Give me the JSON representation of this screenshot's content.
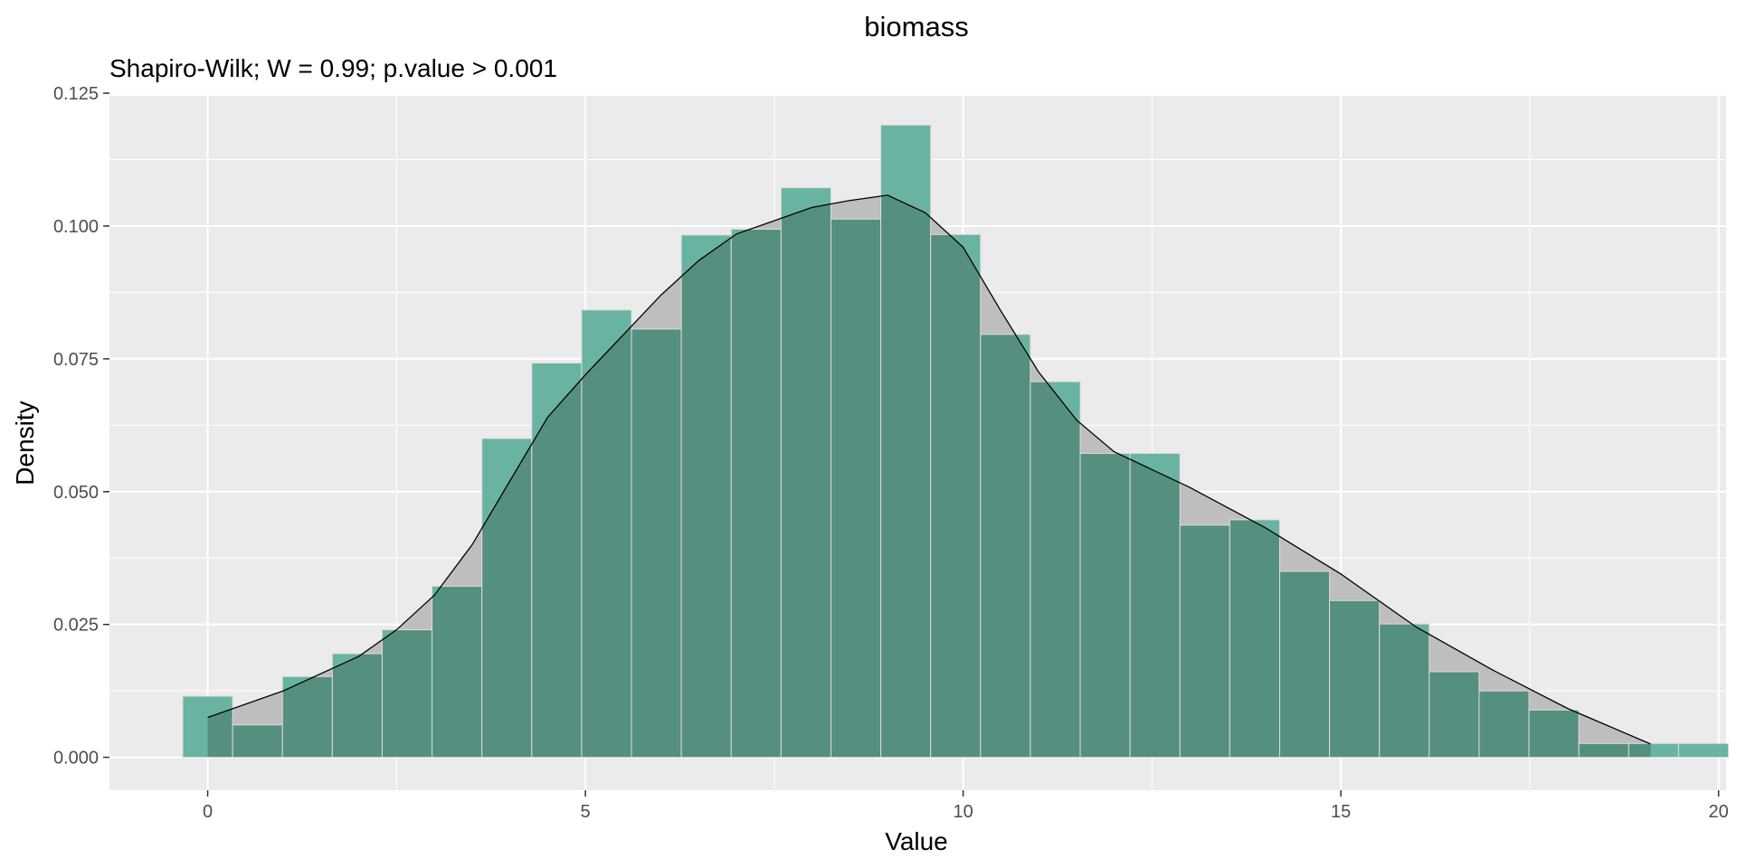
{
  "chart_data": {
    "type": "bar",
    "title": "biomass",
    "subtitle": "Shapiro-Wilk; W = 0.99; p.value > 0.001",
    "xlabel": "Value",
    "ylabel": "Density",
    "xlim": [
      -1.3,
      20.1
    ],
    "ylim": [
      -0.0062,
      0.1245
    ],
    "xticks": [
      0,
      5,
      10,
      15,
      20
    ],
    "yticks": [
      0.0,
      0.025,
      0.05,
      0.075,
      0.1,
      0.125
    ],
    "xtick_labels": [
      "0",
      "5",
      "10",
      "15",
      "20"
    ],
    "ytick_labels": [
      "0.000",
      "0.025",
      "0.050",
      "0.075",
      "0.100",
      "0.125"
    ],
    "grid": true,
    "colors": {
      "panel": "#EBEBEB",
      "grid_major": "#FFFFFF",
      "bar_fill": "#69B3A2",
      "density_fill": "#BEBEBE",
      "overlap": "#558F80",
      "density_line": "#000000"
    },
    "histogram": {
      "bin_width": 0.66,
      "bin_start": -0.33,
      "values": [
        0.0115,
        0.0061,
        0.0152,
        0.0195,
        0.024,
        0.0322,
        0.06,
        0.0742,
        0.0842,
        0.0806,
        0.0983,
        0.0994,
        0.1072,
        0.1013,
        0.119,
        0.0984,
        0.0796,
        0.0707,
        0.0572,
        0.0572,
        0.0437,
        0.0447,
        0.035,
        0.0295,
        0.0251,
        0.0161,
        0.0125,
        0.0089,
        0.0026,
        0.0026,
        0.0026
      ]
    },
    "density": {
      "x": [
        0,
        1,
        2,
        2.5,
        3,
        3.5,
        4,
        4.5,
        5,
        5.5,
        6,
        6.5,
        7,
        7.5,
        8,
        8.5,
        9,
        9.5,
        10,
        10.5,
        11,
        11.5,
        12,
        13,
        14,
        15,
        16,
        17,
        18,
        19.1
      ],
      "y": [
        0.0075,
        0.0125,
        0.019,
        0.024,
        0.0305,
        0.04,
        0.052,
        0.064,
        0.072,
        0.0795,
        0.087,
        0.0935,
        0.0985,
        0.101,
        0.1035,
        0.1048,
        0.1058,
        0.1025,
        0.096,
        0.084,
        0.0725,
        0.0635,
        0.0575,
        0.0508,
        0.0432,
        0.0345,
        0.0245,
        0.0165,
        0.0092,
        0.0025
      ]
    }
  }
}
